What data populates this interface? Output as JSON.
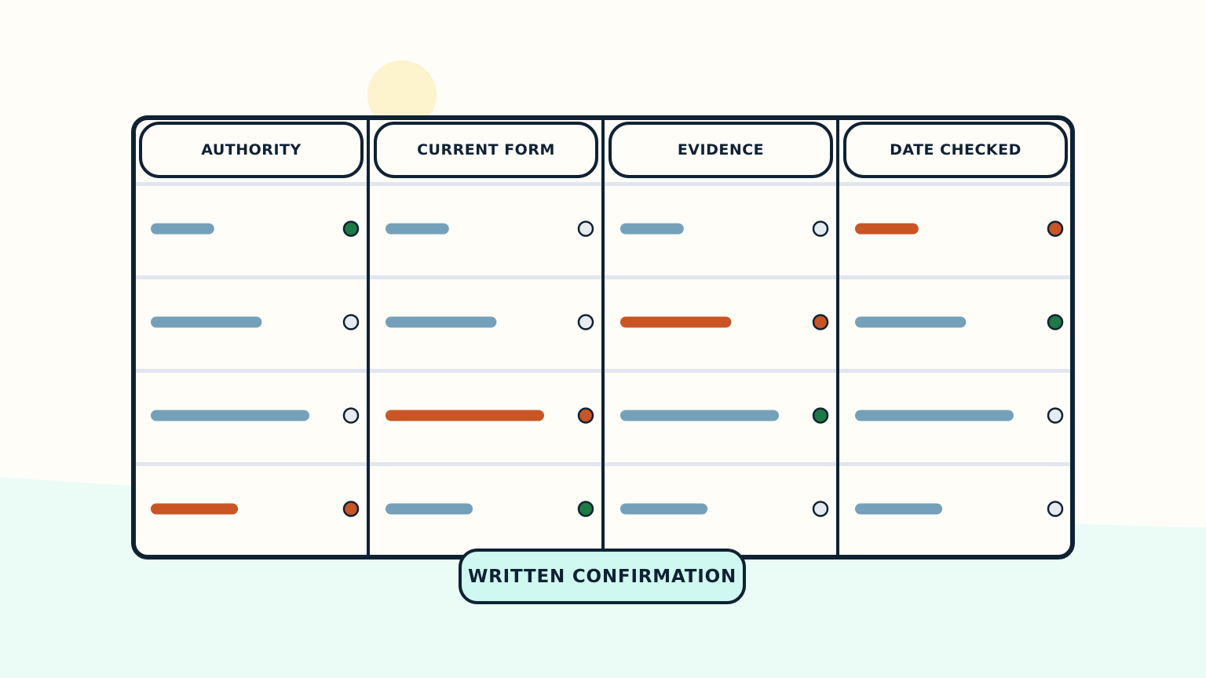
{
  "columns": [
    "AUTHORITY",
    "CURRENT FORM",
    "EVIDENCE",
    "DATE CHECKED"
  ],
  "footer_tag": "WRITTEN CONFIRMATION",
  "colors": {
    "frame": "#0f2233",
    "pending_bar": "#74a1b9",
    "flag_bar": "#c95525",
    "ok_dot": "#1c7a45",
    "flag_dot": "#c95525",
    "empty_dot": "#e6ebf2",
    "footer_fill": "#cff8f0",
    "sun": "#fdf3cc",
    "ground": "#ebfcf6",
    "row_divider": "#e1e6ef"
  },
  "rows": [
    [
      {
        "bar": 0.4,
        "status": "ok"
      },
      {
        "bar": 0.4,
        "status": "empty"
      },
      {
        "bar": 0.4,
        "status": "empty"
      },
      {
        "bar": 0.4,
        "status": "flag"
      }
    ],
    [
      {
        "bar": 0.7,
        "status": "empty"
      },
      {
        "bar": 0.7,
        "status": "empty"
      },
      {
        "bar": 0.7,
        "status": "flag"
      },
      {
        "bar": 0.7,
        "status": "ok"
      }
    ],
    [
      {
        "bar": 1.0,
        "status": "empty"
      },
      {
        "bar": 1.0,
        "status": "flag"
      },
      {
        "bar": 1.0,
        "status": "ok"
      },
      {
        "bar": 1.0,
        "status": "empty"
      }
    ],
    [
      {
        "bar": 0.55,
        "status": "flag"
      },
      {
        "bar": 0.55,
        "status": "ok"
      },
      {
        "bar": 0.55,
        "status": "empty"
      },
      {
        "bar": 0.55,
        "status": "empty"
      }
    ]
  ]
}
